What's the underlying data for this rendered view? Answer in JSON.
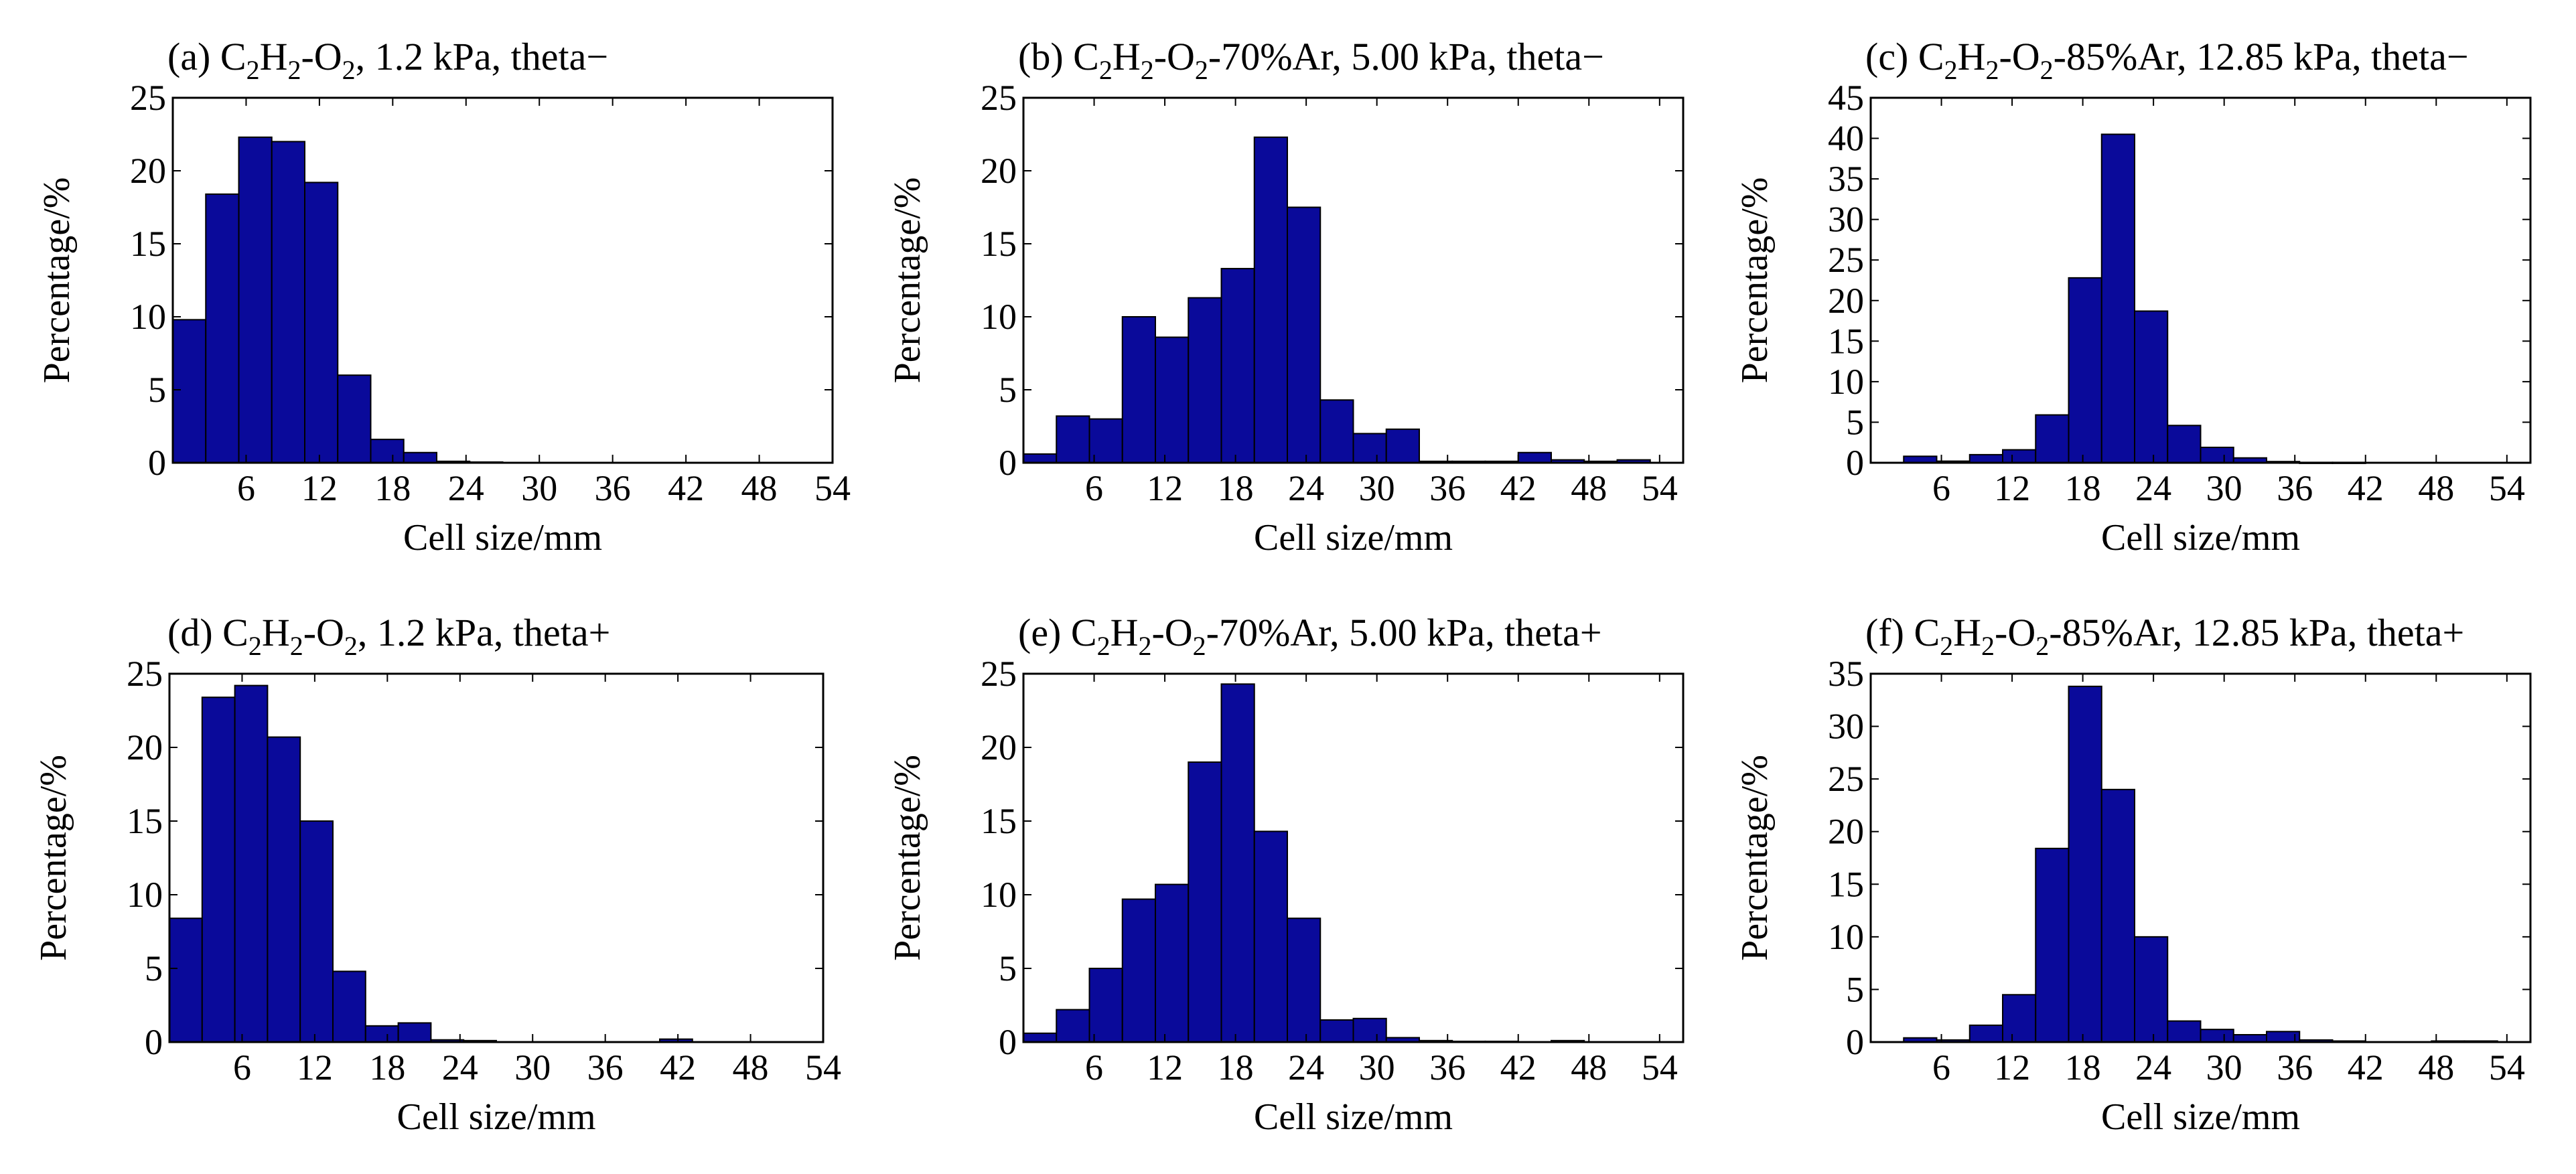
{
  "colors": {
    "bar_fill": "#0a0a9a",
    "bar_edge": "#000000",
    "axis": "#000000",
    "background": "#ffffff"
  },
  "chart_data": [
    {
      "type": "bar",
      "title_parts": [
        "(a) C",
        "2",
        "H",
        "2",
        "-O",
        "2",
        ", 1.2 kPa, theta−"
      ],
      "xlabel": "Cell size/mm",
      "ylabel": "Percentage/%",
      "xlim": [
        0,
        54
      ],
      "ylim": [
        0,
        25
      ],
      "xticks": [
        6,
        12,
        18,
        24,
        30,
        36,
        42,
        48,
        54
      ],
      "yticks": [
        0,
        5,
        10,
        15,
        20,
        25
      ],
      "bin_width": 2.7,
      "values": [
        9.8,
        18.4,
        22.3,
        22.0,
        19.2,
        6.0,
        1.6,
        0.7,
        0.1,
        0.05,
        0,
        0,
        0,
        0,
        0,
        0,
        0,
        0,
        0,
        0
      ],
      "grid": false
    },
    {
      "type": "bar",
      "title_parts": [
        "(b) C",
        "2",
        "H",
        "2",
        "-O",
        "2",
        "-70%Ar, 5.00 kPa, theta−"
      ],
      "xlabel": "Cell size/mm",
      "ylabel": "Percentage/%",
      "xlim": [
        0,
        56
      ],
      "ylim": [
        0,
        25
      ],
      "xticks": [
        6,
        12,
        18,
        24,
        30,
        36,
        42,
        48,
        54
      ],
      "yticks": [
        0,
        5,
        10,
        15,
        20,
        25
      ],
      "bin_width": 2.8,
      "values": [
        0.6,
        3.2,
        3.0,
        10.0,
        8.6,
        11.3,
        13.3,
        22.3,
        17.5,
        4.3,
        2.0,
        2.3,
        0.1,
        0.1,
        0.1,
        0.7,
        0.2,
        0.1,
        0.2,
        0
      ],
      "grid": false
    },
    {
      "type": "bar",
      "title_parts": [
        "(c) C",
        "2",
        "H",
        "2",
        "-O",
        "2",
        "-85%Ar, 12.85 kPa, theta−"
      ],
      "xlabel": "Cell size/mm",
      "ylabel": "Percentage/%",
      "xlim": [
        0,
        56
      ],
      "ylim": [
        0,
        45
      ],
      "xticks": [
        6,
        12,
        18,
        24,
        30,
        36,
        42,
        48,
        54
      ],
      "yticks": [
        0,
        5,
        10,
        15,
        20,
        25,
        30,
        35,
        40,
        45
      ],
      "bin_width": 2.8,
      "values": [
        0,
        0.8,
        0.2,
        1.0,
        1.6,
        5.9,
        22.8,
        40.5,
        18.7,
        4.6,
        1.9,
        0.6,
        0.15,
        0.05,
        0.05,
        0,
        0,
        0,
        0,
        0
      ],
      "grid": false
    },
    {
      "type": "bar",
      "title_parts": [
        "(d) C",
        "2",
        "H",
        "2",
        "-O",
        "2",
        ", 1.2 kPa, theta+"
      ],
      "xlabel": "Cell size/mm",
      "ylabel": "Percentage/%",
      "xlim": [
        0,
        54
      ],
      "ylim": [
        0,
        25
      ],
      "xticks": [
        6,
        12,
        18,
        24,
        30,
        36,
        42,
        48,
        54
      ],
      "yticks": [
        0,
        5,
        10,
        15,
        20,
        25
      ],
      "bin_width": 2.7,
      "values": [
        8.4,
        23.4,
        24.2,
        20.7,
        15.0,
        4.8,
        1.1,
        1.3,
        0.15,
        0.1,
        0,
        0,
        0,
        0,
        0,
        0.2,
        0,
        0,
        0,
        0
      ],
      "grid": false
    },
    {
      "type": "bar",
      "title_parts": [
        "(e) C",
        "2",
        "H",
        "2",
        "-O",
        "2",
        "-70%Ar, 5.00 kPa, theta+"
      ],
      "xlabel": "Cell size/mm",
      "ylabel": "Percentage/%",
      "xlim": [
        0,
        56
      ],
      "ylim": [
        0,
        25
      ],
      "xticks": [
        6,
        12,
        18,
        24,
        30,
        36,
        42,
        48,
        54
      ],
      "yticks": [
        0,
        5,
        10,
        15,
        20,
        25
      ],
      "bin_width": 2.8,
      "values": [
        0.6,
        2.2,
        5.0,
        9.7,
        10.7,
        19.0,
        24.3,
        14.3,
        8.4,
        1.5,
        1.6,
        0.3,
        0.1,
        0.05,
        0.05,
        0,
        0.1,
        0,
        0,
        0
      ],
      "grid": false
    },
    {
      "type": "bar",
      "title_parts": [
        "(f) C",
        "2",
        "H",
        "2",
        "-O",
        "2",
        "-85%Ar, 12.85 kPa, theta+"
      ],
      "xlabel": "Cell size/mm",
      "ylabel": "Percentage/%",
      "xlim": [
        0,
        56
      ],
      "ylim": [
        0,
        35
      ],
      "xticks": [
        6,
        12,
        18,
        24,
        30,
        36,
        42,
        48,
        54
      ],
      "yticks": [
        0,
        5,
        10,
        15,
        20,
        25,
        30,
        35
      ],
      "bin_width": 2.8,
      "values": [
        0,
        0.4,
        0.2,
        1.6,
        4.5,
        18.4,
        33.8,
        24.0,
        10.0,
        2.0,
        1.2,
        0.7,
        1.0,
        0.2,
        0.1,
        0,
        0,
        0.1,
        0.1,
        0
      ],
      "grid": false
    }
  ]
}
